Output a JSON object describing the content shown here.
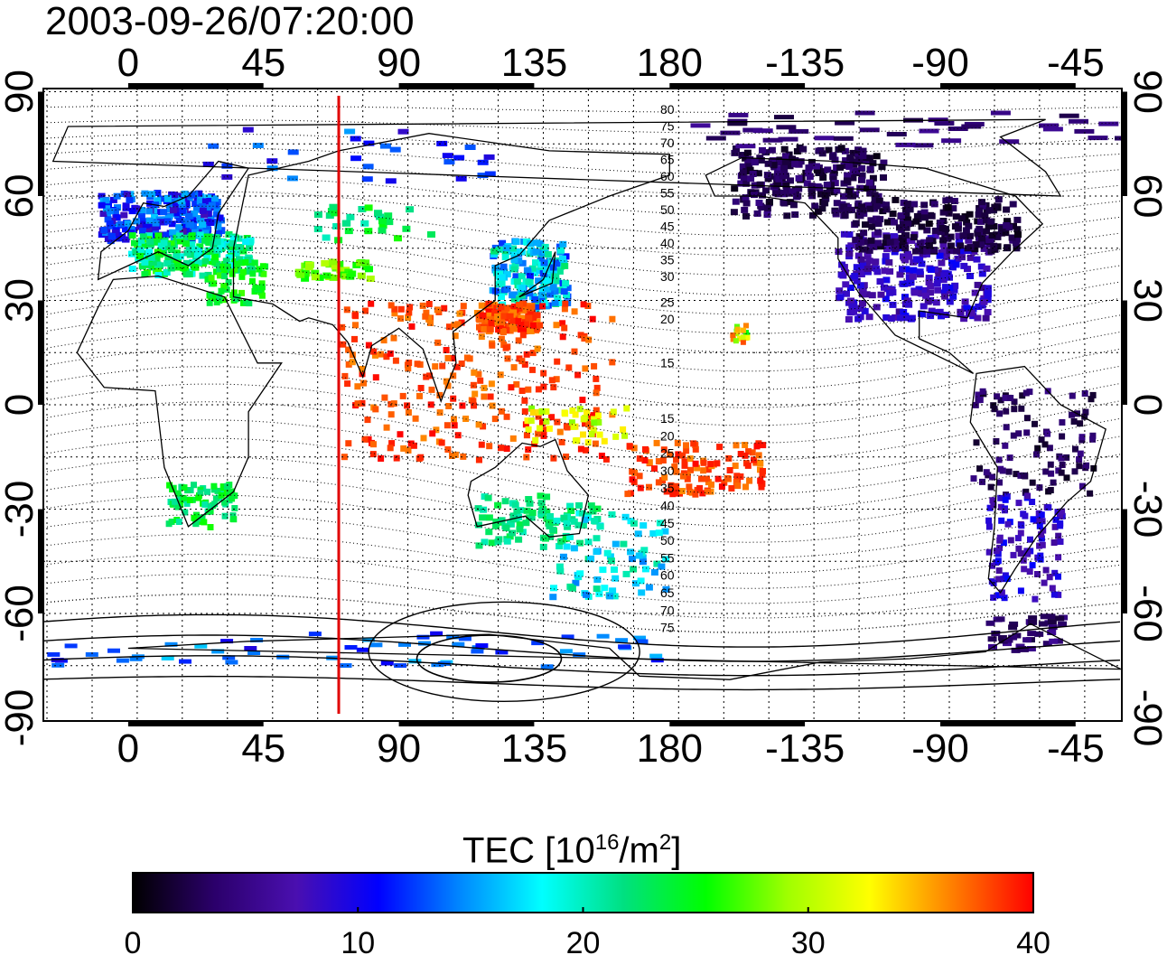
{
  "title": "2003-09-26/07:20:00",
  "map": {
    "projection": "equirectangular",
    "lon_center": 140,
    "top_axis_labels": [
      "0",
      "45",
      "90",
      "135",
      "180",
      "-135",
      "-90",
      "-45"
    ],
    "bottom_axis_labels": [
      "0",
      "45",
      "90",
      "135",
      "180",
      "-135",
      "-90",
      "-45"
    ],
    "left_axis_labels": [
      "90",
      "60",
      "30",
      "0",
      "-30",
      "-60",
      "-90"
    ],
    "right_axis_labels": [
      "90",
      "60",
      "30",
      "0",
      "-30",
      "-60",
      "-90"
    ],
    "grid": "dotted every 15 degrees",
    "marker_line": {
      "type": "meridian",
      "longitude": 70,
      "color": "#e00000"
    },
    "contour_labels_north": [
      "80",
      "75",
      "70",
      "65",
      "60",
      "55",
      "50",
      "45",
      "40",
      "35",
      "30",
      "25",
      "20",
      "15"
    ],
    "contour_labels_south": [
      "15",
      "20",
      "25",
      "30",
      "35",
      "40",
      "45",
      "50",
      "55",
      "60",
      "65",
      "70",
      "75"
    ]
  },
  "colorbar": {
    "title_main": "TEC  [10",
    "title_exp1": "16",
    "title_mid": "/m",
    "title_exp2": "2",
    "title_end": "]",
    "tick_labels": [
      "0",
      "10",
      "20",
      "30",
      "40"
    ],
    "range": [
      0,
      40
    ],
    "colors": [
      "#000000",
      "#2b006b",
      "#4a0fb0",
      "#0000ff",
      "#0088ff",
      "#00ffff",
      "#00e080",
      "#00ff00",
      "#a0ff00",
      "#ffff00",
      "#ff8000",
      "#ff0000"
    ]
  }
}
